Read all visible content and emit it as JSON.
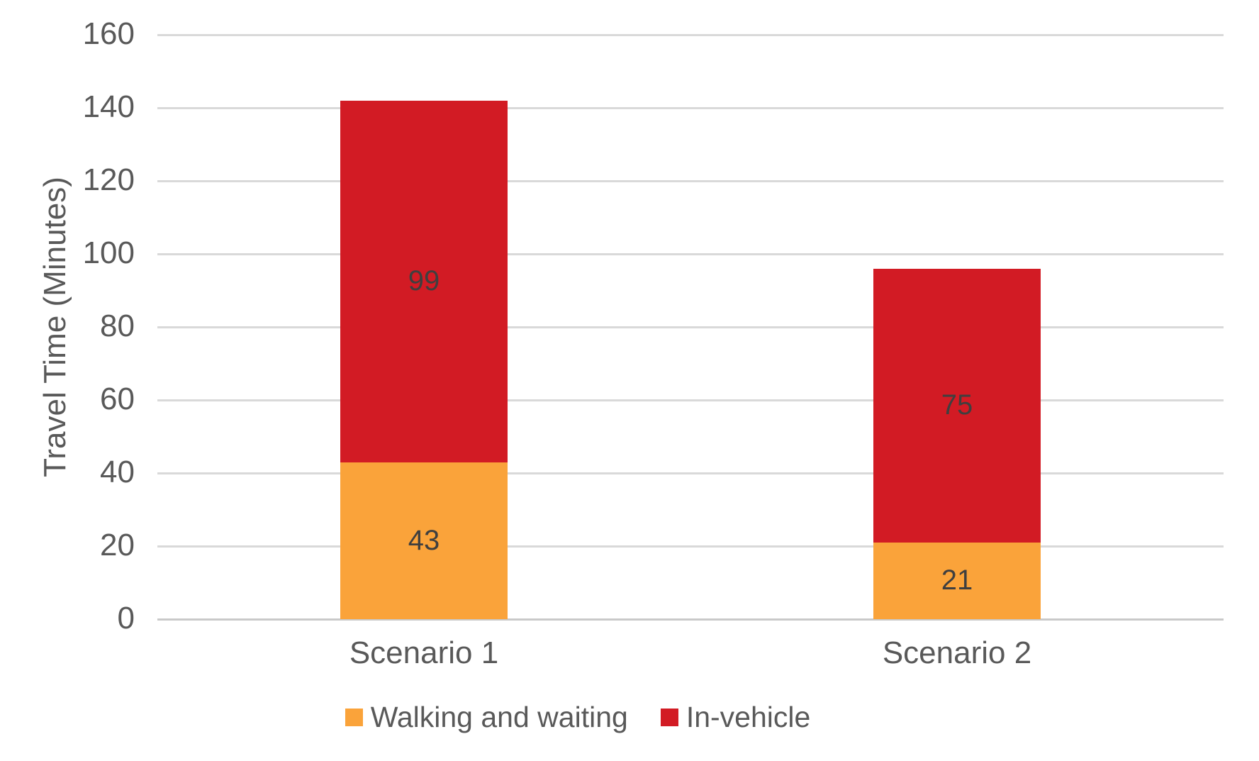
{
  "chart_data": {
    "type": "bar",
    "stacked": true,
    "title": "",
    "categories": [
      "Scenario 1",
      "Scenario 2"
    ],
    "series": [
      {
        "name": "Walking and waiting",
        "color": "#FAA33A",
        "values": [
          43,
          21
        ]
      },
      {
        "name": "In-vehicle",
        "color": "#D21B24",
        "values": [
          99,
          75
        ]
      }
    ],
    "xlabel": "",
    "ylabel": "Travel Time (Minutes)",
    "ylim": [
      0,
      160
    ],
    "yticks": [
      0,
      20,
      40,
      60,
      80,
      100,
      120,
      140,
      160
    ],
    "grid": true,
    "legend_position": "bottom",
    "data_labels": true
  },
  "colors": {
    "background": "#FFFFFF",
    "gridline": "#D9D9D9",
    "axis_baseline": "#C9C9C9",
    "axis_text": "#595959",
    "data_label_text": "#3F3F3F"
  }
}
